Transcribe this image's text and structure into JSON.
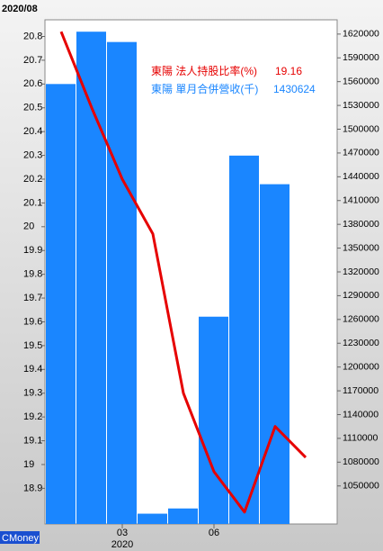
{
  "chart_data": {
    "type": "bar_line",
    "title": "2020/08",
    "source": "CMoney",
    "x_annotation": "2020",
    "categories": [
      null,
      null,
      "03",
      null,
      null,
      "06",
      null,
      null,
      null
    ],
    "series": [
      {
        "name": "東陽 法人持股比率(%)",
        "type": "line",
        "axis": "y",
        "color": "#e60000",
        "values": [
          20.82,
          20.5,
          20.2,
          19.97,
          19.3,
          18.97,
          18.8,
          19.16,
          19.03
        ]
      },
      {
        "name": "東陽 單月合併營收(千)",
        "type": "bar",
        "axis": "y2",
        "color": "#1a86ff",
        "values": [
          1557000,
          1623000,
          1610000,
          1015000,
          1021600,
          1263500,
          1466700,
          1430624,
          null
        ]
      }
    ],
    "ylim": [
      18.75,
      20.87
    ],
    "yticks": [
      18.9,
      19,
      19.1,
      19.2,
      19.3,
      19.4,
      19.5,
      19.6,
      19.7,
      19.8,
      19.9,
      20,
      20.1,
      20.2,
      20.3,
      20.4,
      20.5,
      20.6,
      20.7,
      20.8
    ],
    "y2lim": [
      1002000,
      1638000
    ],
    "y2ticks": [
      1050000,
      1080000,
      1110000,
      1140000,
      1170000,
      1200000,
      1230000,
      1260000,
      1290000,
      1320000,
      1350000,
      1380000,
      1410000,
      1440000,
      1470000,
      1500000,
      1530000,
      1560000,
      1590000,
      1620000
    ],
    "legend_index": 7
  }
}
